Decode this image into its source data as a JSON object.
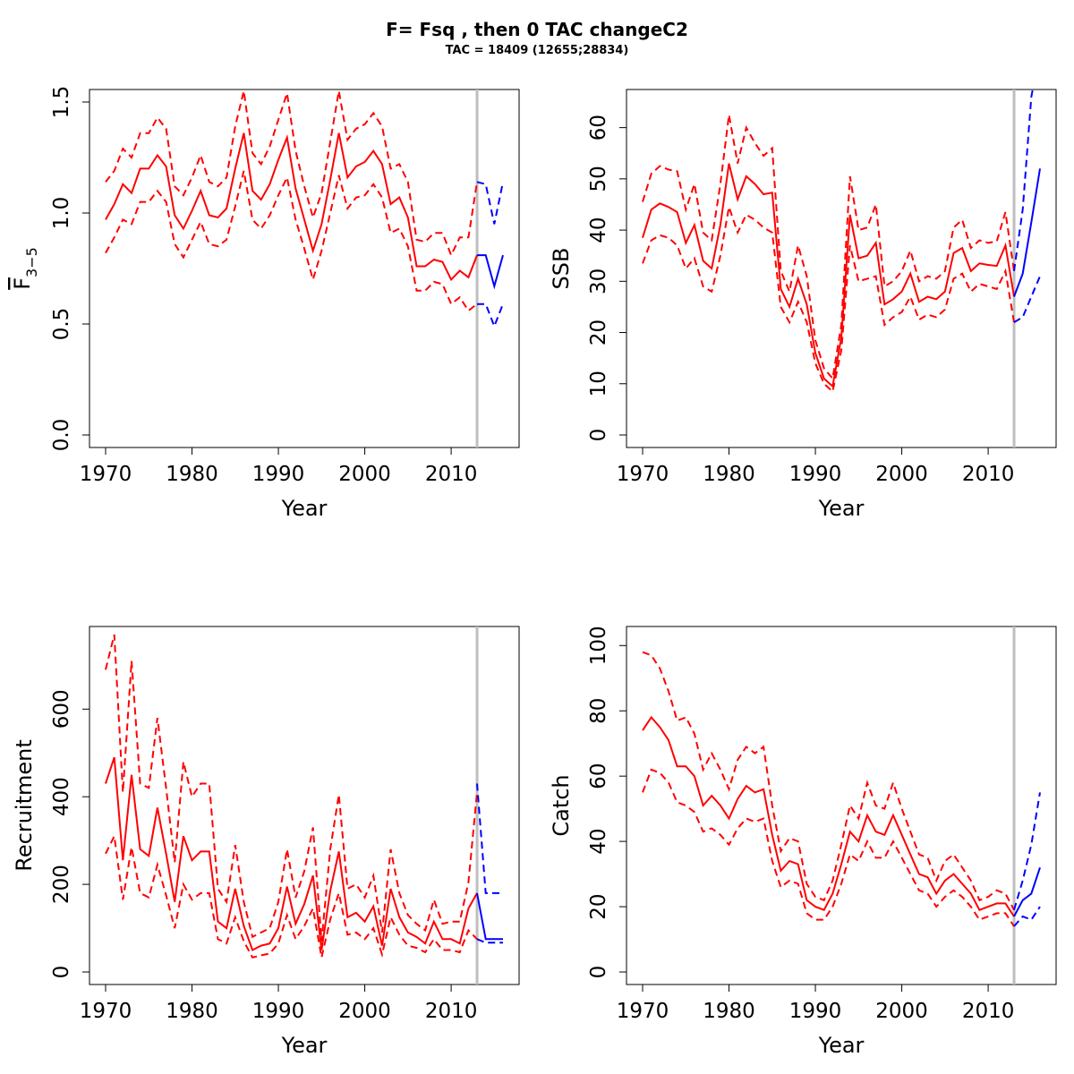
{
  "title": "F= Fsq , then 0 TAC changeC2",
  "subtitle": "TAC = 18409 (12655;28834)",
  "colors": {
    "historic": "#ff0000",
    "projection": "#0000ff",
    "ref_line": "#bebebe"
  },
  "chart_data": [
    {
      "type": "line",
      "xlabel": "Year",
      "ylabel": "F3-5",
      "ylabel_parts": {
        "main": "F",
        "sub": "3−5"
      },
      "xlim": [
        1970,
        2016
      ],
      "ylim": [
        0,
        1.5
      ],
      "x_ticks": [
        "1970",
        "1980",
        "1990",
        "2000",
        "2010"
      ],
      "y_ticks": [
        "0.0",
        "0.5",
        "1.0",
        "1.5"
      ],
      "ref_year": 2013,
      "historic": {
        "x": [
          1970,
          1971,
          1972,
          1973,
          1974,
          1975,
          1976,
          1977,
          1978,
          1979,
          1980,
          1981,
          1982,
          1983,
          1984,
          1985,
          1986,
          1987,
          1988,
          1989,
          1990,
          1991,
          1992,
          1993,
          1994,
          1995,
          1996,
          1997,
          1998,
          1999,
          2000,
          2001,
          2002,
          2003,
          2004,
          2005,
          2006,
          2007,
          2008,
          2009,
          2010,
          2011,
          2012,
          2013
        ],
        "mid": [
          0.97,
          1.04,
          1.13,
          1.09,
          1.2,
          1.2,
          1.26,
          1.21,
          0.99,
          0.93,
          1.01,
          1.1,
          0.99,
          0.98,
          1.02,
          1.2,
          1.36,
          1.1,
          1.06,
          1.13,
          1.24,
          1.34,
          1.11,
          0.97,
          0.83,
          0.95,
          1.15,
          1.36,
          1.16,
          1.21,
          1.23,
          1.28,
          1.22,
          1.04,
          1.07,
          0.98,
          0.76,
          0.76,
          0.79,
          0.78,
          0.7,
          0.74,
          0.71,
          0.81
        ],
        "upper": [
          1.14,
          1.19,
          1.29,
          1.25,
          1.36,
          1.36,
          1.43,
          1.38,
          1.12,
          1.08,
          1.16,
          1.26,
          1.14,
          1.12,
          1.16,
          1.39,
          1.55,
          1.27,
          1.22,
          1.3,
          1.42,
          1.54,
          1.28,
          1.12,
          0.98,
          1.09,
          1.32,
          1.55,
          1.33,
          1.38,
          1.4,
          1.45,
          1.39,
          1.2,
          1.22,
          1.14,
          0.88,
          0.87,
          0.91,
          0.91,
          0.81,
          0.89,
          0.89,
          1.14
        ],
        "lower": [
          0.82,
          0.89,
          0.97,
          0.95,
          1.05,
          1.05,
          1.1,
          1.05,
          0.86,
          0.8,
          0.88,
          0.96,
          0.86,
          0.85,
          0.88,
          1.03,
          1.19,
          0.97,
          0.93,
          0.99,
          1.08,
          1.16,
          0.97,
          0.84,
          0.7,
          0.83,
          1.0,
          1.17,
          1.02,
          1.07,
          1.08,
          1.13,
          1.07,
          0.91,
          0.93,
          0.85,
          0.65,
          0.65,
          0.69,
          0.68,
          0.59,
          0.62,
          0.56,
          0.59
        ]
      },
      "projection": {
        "x": [
          2013,
          2014,
          2015,
          2016
        ],
        "mid": [
          0.81,
          0.81,
          0.67,
          0.81
        ],
        "upper": [
          1.14,
          1.13,
          0.95,
          1.14
        ],
        "lower": [
          0.59,
          0.59,
          0.49,
          0.59
        ]
      }
    },
    {
      "type": "line",
      "xlabel": "Year",
      "ylabel": "SSB",
      "xlim": [
        1970,
        2016
      ],
      "ylim": [
        0,
        65
      ],
      "x_ticks": [
        "1970",
        "1980",
        "1990",
        "2000",
        "2010"
      ],
      "y_ticks": [
        "0",
        "10",
        "20",
        "30",
        "40",
        "50",
        "60"
      ],
      "ref_year": 2013,
      "historic": {
        "x": [
          1970,
          1971,
          1972,
          1973,
          1974,
          1975,
          1976,
          1977,
          1978,
          1979,
          1980,
          1981,
          1982,
          1983,
          1984,
          1985,
          1986,
          1987,
          1988,
          1989,
          1990,
          1991,
          1992,
          1993,
          1994,
          1995,
          1996,
          1997,
          1998,
          1999,
          2000,
          2001,
          2002,
          2003,
          2004,
          2005,
          2006,
          2007,
          2008,
          2009,
          2010,
          2011,
          2012,
          2013
        ],
        "mid": [
          38.5,
          44.0,
          45.2,
          44.5,
          43.5,
          37.5,
          41.0,
          34.0,
          32.5,
          41.0,
          53.0,
          46.0,
          50.5,
          49.0,
          47.0,
          47.3,
          28.5,
          25.0,
          30.5,
          25.5,
          16.0,
          11.0,
          9.5,
          19.0,
          43.0,
          34.5,
          35.0,
          37.5,
          25.5,
          26.5,
          28.0,
          31.5,
          26.0,
          27.0,
          26.5,
          28.0,
          35.5,
          36.5,
          32.0,
          33.5,
          33.2,
          33.0,
          37.0,
          27.0
        ],
        "upper": [
          45.5,
          51.0,
          52.5,
          51.8,
          51.5,
          44.0,
          49.0,
          39.5,
          38.0,
          49.0,
          62.5,
          53.0,
          60.0,
          57.0,
          54.5,
          56.0,
          32.0,
          28.0,
          37.0,
          31.0,
          18.5,
          13.0,
          11.0,
          21.5,
          50.5,
          40.0,
          40.5,
          45.0,
          29.0,
          30.0,
          32.0,
          36.0,
          30.0,
          31.0,
          30.5,
          32.0,
          40.5,
          42.0,
          36.5,
          38.0,
          37.5,
          37.8,
          43.5,
          32.0
        ],
        "lower": [
          33.5,
          38.0,
          39.0,
          38.5,
          37.0,
          32.5,
          34.5,
          29.0,
          28.0,
          35.0,
          44.5,
          39.5,
          43.0,
          42.0,
          40.5,
          39.5,
          25.0,
          22.0,
          26.0,
          22.0,
          14.0,
          10.0,
          8.5,
          16.5,
          37.0,
          30.0,
          30.5,
          31.0,
          21.5,
          23.0,
          24.0,
          27.0,
          22.5,
          23.5,
          23.0,
          24.5,
          30.5,
          31.5,
          28.0,
          29.5,
          29.0,
          28.5,
          32.0,
          22.0
        ]
      },
      "projection": {
        "x": [
          2013,
          2014,
          2015,
          2016
        ],
        "mid": [
          27.0,
          31.5,
          41.5,
          52.0
        ],
        "upper": [
          32.0,
          44.0,
          66.0,
          75.0
        ],
        "lower": [
          22.0,
          23.0,
          27.0,
          31.0
        ]
      }
    },
    {
      "type": "line",
      "xlabel": "Year",
      "ylabel": "Recruitment",
      "xlim": [
        1970,
        2016
      ],
      "ylim": [
        0,
        760
      ],
      "x_ticks": [
        "1970",
        "1980",
        "1990",
        "2000",
        "2010"
      ],
      "y_ticks": [
        "0",
        "200",
        "400",
        "600"
      ],
      "ref_year": 2013,
      "historic": {
        "x": [
          1970,
          1971,
          1972,
          1973,
          1974,
          1975,
          1976,
          1977,
          1978,
          1979,
          1980,
          1981,
          1982,
          1983,
          1984,
          1985,
          1986,
          1987,
          1988,
          1989,
          1990,
          1991,
          1992,
          1993,
          1994,
          1995,
          1996,
          1997,
          1998,
          1999,
          2000,
          2001,
          2002,
          2003,
          2004,
          2005,
          2006,
          2007,
          2008,
          2009,
          2010,
          2011,
          2012,
          2013
        ],
        "mid": [
          430,
          490,
          255,
          450,
          280,
          265,
          375,
          270,
          160,
          310,
          255,
          275,
          275,
          115,
          100,
          190,
          105,
          50,
          60,
          65,
          100,
          195,
          110,
          155,
          220,
          50,
          185,
          275,
          125,
          135,
          115,
          150,
          60,
          190,
          125,
          90,
          80,
          65,
          115,
          75,
          75,
          65,
          145,
          180
        ],
        "upper": [
          690,
          770,
          410,
          710,
          430,
          420,
          580,
          420,
          250,
          480,
          400,
          430,
          430,
          190,
          160,
          290,
          160,
          80,
          90,
          100,
          160,
          280,
          170,
          230,
          330,
          70,
          280,
          405,
          190,
          200,
          170,
          220,
          90,
          280,
          180,
          130,
          110,
          95,
          165,
          110,
          115,
          115,
          205,
          410
        ],
        "lower": [
          270,
          310,
          165,
          285,
          180,
          170,
          245,
          175,
          100,
          200,
          165,
          180,
          180,
          75,
          65,
          125,
          70,
          33,
          38,
          42,
          65,
          130,
          75,
          105,
          145,
          33,
          120,
          180,
          85,
          90,
          75,
          100,
          40,
          125,
          85,
          60,
          55,
          45,
          75,
          50,
          50,
          45,
          95,
          75
        ]
      },
      "projection": {
        "x": [
          2013,
          2014,
          2015,
          2016
        ],
        "mid": [
          180,
          75,
          75,
          75
        ],
        "upper": [
          430,
          180,
          180,
          180
        ],
        "lower": [
          75,
          67,
          67,
          67
        ]
      }
    },
    {
      "type": "line",
      "xlabel": "Year",
      "ylabel": "Catch",
      "xlim": [
        1970,
        2016
      ],
      "ylim": [
        0,
        102
      ],
      "x_ticks": [
        "1970",
        "1980",
        "1990",
        "2000",
        "2010"
      ],
      "y_ticks": [
        "0",
        "20",
        "40",
        "60",
        "80",
        "100"
      ],
      "ref_year": 2013,
      "historic": {
        "x": [
          1970,
          1971,
          1972,
          1973,
          1974,
          1975,
          1976,
          1977,
          1978,
          1979,
          1980,
          1981,
          1982,
          1983,
          1984,
          1985,
          1986,
          1987,
          1988,
          1989,
          1990,
          1991,
          1992,
          1993,
          1994,
          1995,
          1996,
          1997,
          1998,
          1999,
          2000,
          2001,
          2002,
          2003,
          2004,
          2005,
          2006,
          2007,
          2008,
          2009,
          2010,
          2011,
          2012,
          2013
        ],
        "mid": [
          74,
          78,
          75,
          71,
          63,
          63,
          60,
          51,
          54,
          51,
          47,
          53,
          57,
          55,
          56,
          42,
          31,
          34,
          33,
          22,
          20,
          19,
          24,
          33,
          43,
          40,
          48,
          43,
          42,
          48,
          42,
          36,
          30,
          29,
          24,
          28,
          30,
          27,
          24,
          19,
          20,
          21,
          21,
          17
        ],
        "upper": [
          98,
          97,
          93,
          86,
          77,
          78,
          73,
          62,
          67,
          62,
          56,
          65,
          69,
          67,
          69,
          51,
          37,
          41,
          40,
          27,
          23,
          22,
          28,
          39,
          51,
          47,
          58,
          51,
          50,
          58,
          50,
          43,
          36,
          35,
          28,
          34,
          36,
          32,
          28,
          22,
          23,
          25,
          24,
          19
        ],
        "lower": [
          55,
          62,
          61,
          58,
          52,
          51,
          49,
          43,
          44,
          42,
          39,
          44,
          47,
          46,
          47,
          34,
          26,
          28,
          27,
          18,
          16,
          16,
          20,
          27,
          36,
          34,
          40,
          35,
          35,
          40,
          35,
          30,
          25,
          24,
          20,
          23,
          25,
          23,
          20,
          16,
          17,
          18,
          18,
          14
        ]
      },
      "projection": {
        "x": [
          2013,
          2014,
          2015,
          2016
        ],
        "mid": [
          17,
          22,
          24,
          32
        ],
        "upper": [
          19,
          28,
          39,
          55
        ],
        "lower": [
          14,
          17,
          16,
          20
        ]
      }
    }
  ]
}
